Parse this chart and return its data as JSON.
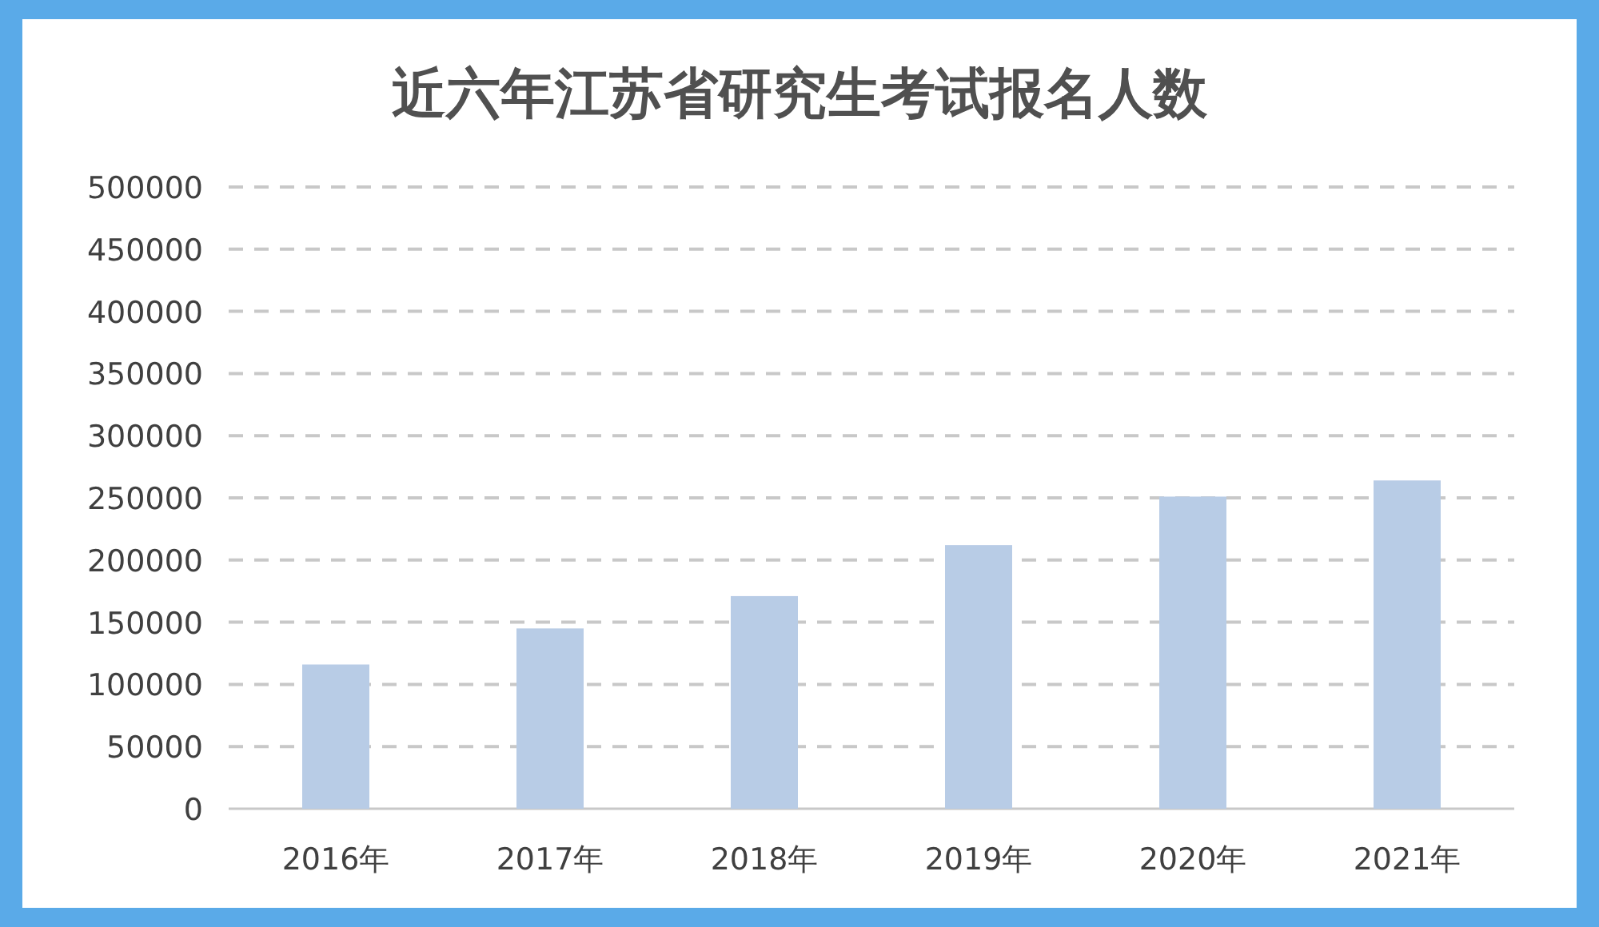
{
  "chart_data": {
    "type": "bar",
    "title": "近六年江苏省研究生考试报名人数",
    "categories": [
      "2016年",
      "2017年",
      "2018年",
      "2019年",
      "2020年",
      "2021年"
    ],
    "values": [
      116000,
      145000,
      171000,
      212000,
      251000,
      264000
    ],
    "color": "#b8cce6",
    "ylim": [
      0,
      500000
    ],
    "yticks": [
      0,
      50000,
      100000,
      150000,
      200000,
      250000,
      300000,
      350000,
      400000,
      450000,
      500000
    ],
    "grid": "y"
  }
}
